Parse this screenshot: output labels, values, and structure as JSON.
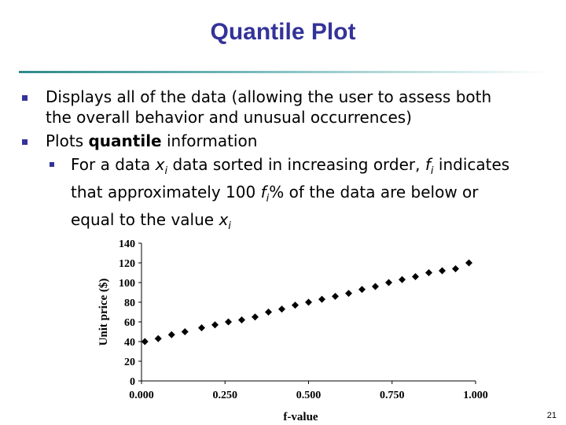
{
  "slide": {
    "title": "Quantile Plot",
    "page_number": "21"
  },
  "bullets": [
    {
      "lines": [
        "Displays all of the data (allowing the user to assess both",
        "the overall behavior and unusual occurrences)"
      ]
    },
    {
      "parts": [
        {
          "text": "Plots ",
          "style": "normal"
        },
        {
          "text": "quantile",
          "style": "bold"
        },
        {
          "text": " information",
          "style": "normal"
        }
      ]
    }
  ],
  "sub_bullet": {
    "line1": [
      {
        "text": "For a data ",
        "style": "normal"
      },
      {
        "text": "x",
        "style": "italic"
      },
      {
        "text": "i",
        "style": "italic-sub"
      },
      {
        "text": " data sorted in increasing order, ",
        "style": "normal"
      },
      {
        "text": "f",
        "style": "italic"
      },
      {
        "text": "i",
        "style": "italic-sub"
      },
      {
        "text": " indicates",
        "style": "normal"
      }
    ],
    "line2": [
      {
        "text": "that approximately 100 ",
        "style": "normal"
      },
      {
        "text": "f",
        "style": "italic"
      },
      {
        "text": "i",
        "style": "italic-sub"
      },
      {
        "text": "% of the data are below or",
        "style": "normal"
      }
    ],
    "line3": [
      {
        "text": "equal to the value ",
        "style": "normal"
      },
      {
        "text": "x",
        "style": "italic"
      },
      {
        "text": "i",
        "style": "italic-sub"
      }
    ]
  },
  "colors": {
    "title": "#333399",
    "bullet": "#333399",
    "marker": "#000000"
  },
  "chart_data": {
    "type": "scatter",
    "marker": "diamond",
    "xlabel": "f-value",
    "ylabel": "Unit price ($)",
    "xlim": [
      0,
      1
    ],
    "ylim": [
      0,
      140
    ],
    "x_ticks": [
      "0.000",
      "0.250",
      "0.500",
      "0.750",
      "1.000"
    ],
    "y_ticks": [
      "0",
      "20",
      "40",
      "60",
      "80",
      "100",
      "120",
      "140"
    ],
    "grid": false,
    "legend": "none",
    "x": [
      0.01,
      0.05,
      0.09,
      0.13,
      0.18,
      0.22,
      0.26,
      0.3,
      0.34,
      0.38,
      0.42,
      0.46,
      0.5,
      0.54,
      0.58,
      0.62,
      0.66,
      0.7,
      0.74,
      0.78,
      0.82,
      0.86,
      0.9,
      0.94,
      0.98
    ],
    "y": [
      40,
      43,
      47,
      50,
      54,
      57,
      60,
      62,
      65,
      70,
      73,
      77,
      80,
      83,
      86,
      89,
      93,
      96,
      100,
      103,
      106,
      110,
      112,
      114,
      120
    ]
  }
}
